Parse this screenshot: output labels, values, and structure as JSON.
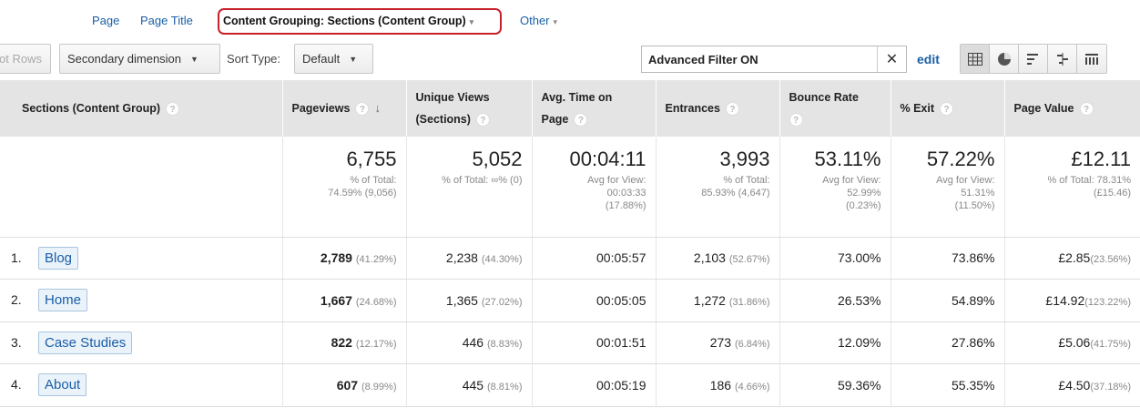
{
  "dimensions": {
    "page": "Page",
    "page_title": "Page Title",
    "content_grouping": "Content Grouping: Sections (Content Group)",
    "other": "Other"
  },
  "toolbar": {
    "plot_rows": "ot Rows",
    "secondary_dimension": "Secondary dimension",
    "sort_type_label": "Sort Type:",
    "sort_type_value": "Default",
    "filter_text": "Advanced Filter ON",
    "edit": "edit",
    "view_icons": [
      "table-view-icon",
      "pie-view-icon",
      "performance-view-icon",
      "comparison-view-icon",
      "pivot-view-icon"
    ]
  },
  "table": {
    "headers": {
      "dimension": "Sections (Content Group)",
      "pageviews": "Pageviews",
      "unique_views_1": "Unique Views",
      "unique_views_2": "(Sections)",
      "avg_time_1": "Avg. Time on",
      "avg_time_2": "Page",
      "entrances": "Entrances",
      "bounce_rate": "Bounce Rate",
      "exit": "% Exit",
      "page_value": "Page Value"
    },
    "totals": {
      "pageviews": {
        "value": "6,755",
        "l1": "% of Total:",
        "l2": "74.59% (9,056)"
      },
      "unique_views": {
        "value": "5,052",
        "l1": "% of Total: ∞% (0)"
      },
      "avg_time": {
        "value": "00:04:11",
        "l1": "Avg for View:",
        "l2": "00:03:33",
        "l3": "(17.88%)"
      },
      "entrances": {
        "value": "3,993",
        "l1": "% of Total:",
        "l2": "85.93% (4,647)"
      },
      "bounce_rate": {
        "value": "53.11%",
        "l1": "Avg for View:",
        "l2": "52.99%",
        "l3": "(0.23%)"
      },
      "exit": {
        "value": "57.22%",
        "l1": "Avg for View:",
        "l2": "51.31%",
        "l3": "(11.50%)"
      },
      "page_value": {
        "value": "£12.11",
        "l1": "% of Total: 78.31%",
        "l2": "(£15.46)"
      }
    },
    "rows": [
      {
        "rank": "1.",
        "name": "Blog",
        "pageviews": "2,789",
        "pageviews_pct": "(41.29%)",
        "unique": "2,238",
        "unique_pct": "(44.30%)",
        "avg_time": "00:05:57",
        "entrances": "2,103",
        "entrances_pct": "(52.67%)",
        "bounce": "73.00%",
        "exit": "73.86%",
        "value": "£2.85",
        "value_pct": "(23.56%)"
      },
      {
        "rank": "2.",
        "name": "Home",
        "pageviews": "1,667",
        "pageviews_pct": "(24.68%)",
        "unique": "1,365",
        "unique_pct": "(27.02%)",
        "avg_time": "00:05:05",
        "entrances": "1,272",
        "entrances_pct": "(31.86%)",
        "bounce": "26.53%",
        "exit": "54.89%",
        "value": "£14.92",
        "value_pct": "(123.22%)"
      },
      {
        "rank": "3.",
        "name": "Case Studies",
        "pageviews": "822",
        "pageviews_pct": "(12.17%)",
        "unique": "446",
        "unique_pct": "(8.83%)",
        "avg_time": "00:01:51",
        "entrances": "273",
        "entrances_pct": "(6.84%)",
        "bounce": "12.09%",
        "exit": "27.86%",
        "value": "£5.06",
        "value_pct": "(41.75%)"
      },
      {
        "rank": "4.",
        "name": "About",
        "pageviews": "607",
        "pageviews_pct": "(8.99%)",
        "unique": "445",
        "unique_pct": "(8.81%)",
        "avg_time": "00:05:19",
        "entrances": "186",
        "entrances_pct": "(4.66%)",
        "bounce": "59.36%",
        "exit": "55.35%",
        "value": "£4.50",
        "value_pct": "(37.18%)"
      }
    ]
  },
  "colors": {
    "link": "#1a5fa8",
    "highlight_border": "#c8202a",
    "header_bg": "#e4e4e4"
  }
}
